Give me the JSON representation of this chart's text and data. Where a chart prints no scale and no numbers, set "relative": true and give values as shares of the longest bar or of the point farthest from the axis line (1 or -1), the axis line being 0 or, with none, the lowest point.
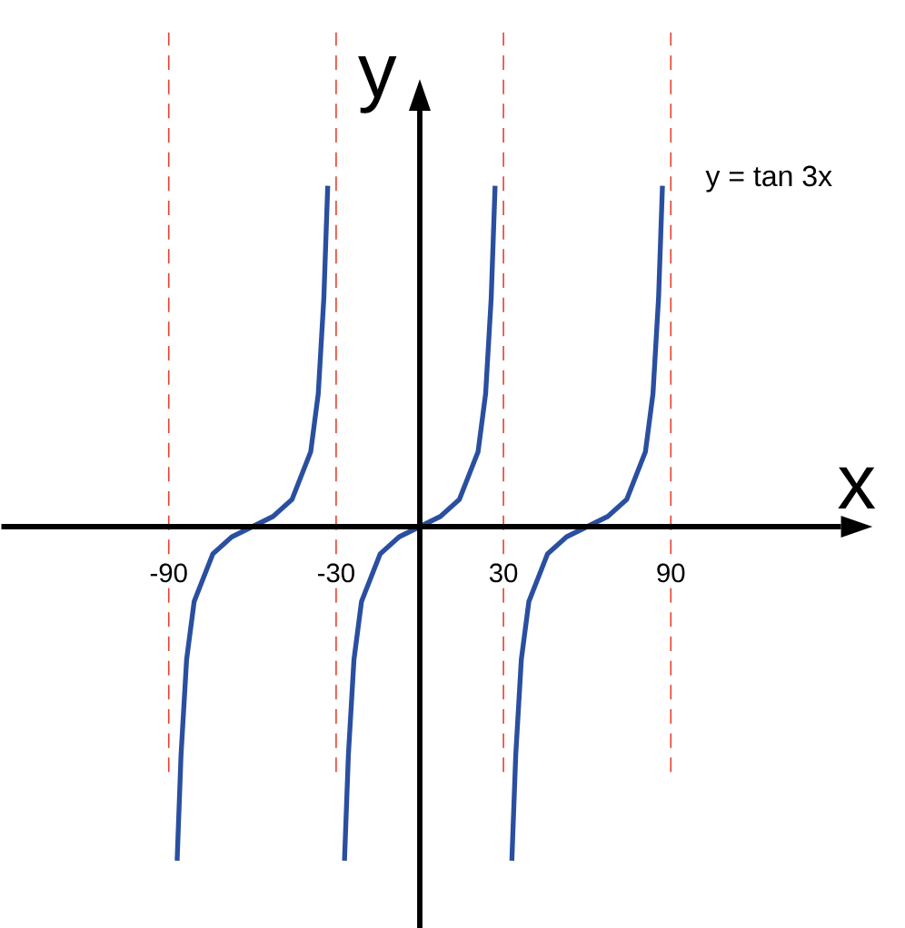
{
  "chart_data": {
    "type": "line",
    "xlabel": "x",
    "ylabel": "y",
    "relative": true,
    "annotations": [
      "y = tan 3x"
    ],
    "xlim": [
      -150,
      151
    ],
    "xticks": [
      -90,
      -30,
      30,
      90
    ],
    "grid": false,
    "series": [
      {
        "color": "#2a4fa0",
        "x": [
          -87,
          -85.6,
          -83.6,
          -80.9,
          -74.2,
          -67.4,
          -60,
          -52.6,
          -45.8,
          -39.1,
          -36.4,
          -34.4,
          -33
        ],
        "values": [
          -0.98,
          -0.67,
          -0.39,
          -0.22,
          -0.08,
          -0.03,
          0,
          0.03,
          0.08,
          0.22,
          0.39,
          0.67,
          1
        ]
      },
      {
        "color": "#2a4fa0",
        "x": [
          -27,
          -25.6,
          -23.6,
          -20.9,
          -14.2,
          -7.4,
          0,
          7.4,
          14.2,
          20.9,
          23.6,
          25.6,
          27
        ],
        "values": [
          -0.98,
          -0.67,
          -0.39,
          -0.22,
          -0.08,
          -0.03,
          0,
          0.03,
          0.08,
          0.22,
          0.39,
          0.67,
          1
        ]
      },
      {
        "color": "#2a4fa0",
        "x": [
          33,
          34.4,
          36.4,
          39.1,
          45.8,
          52.6,
          60,
          67.4,
          74.2,
          80.9,
          83.6,
          85.6,
          87
        ],
        "values": [
          -0.98,
          -0.67,
          -0.39,
          -0.22,
          -0.08,
          -0.03,
          0,
          0.03,
          0.08,
          0.22,
          0.39,
          0.67,
          1
        ]
      }
    ],
    "ref_lines": [
      {
        "axis": "x",
        "value": -90,
        "color": "#e8402f",
        "line_style": "dashed"
      },
      {
        "axis": "x",
        "value": -30,
        "color": "#e8402f",
        "line_style": "dashed"
      },
      {
        "axis": "x",
        "value": 30,
        "color": "#e8402f",
        "line_style": "dashed"
      },
      {
        "axis": "x",
        "value": 90,
        "color": "#e8402f",
        "line_style": "dashed"
      }
    ]
  }
}
